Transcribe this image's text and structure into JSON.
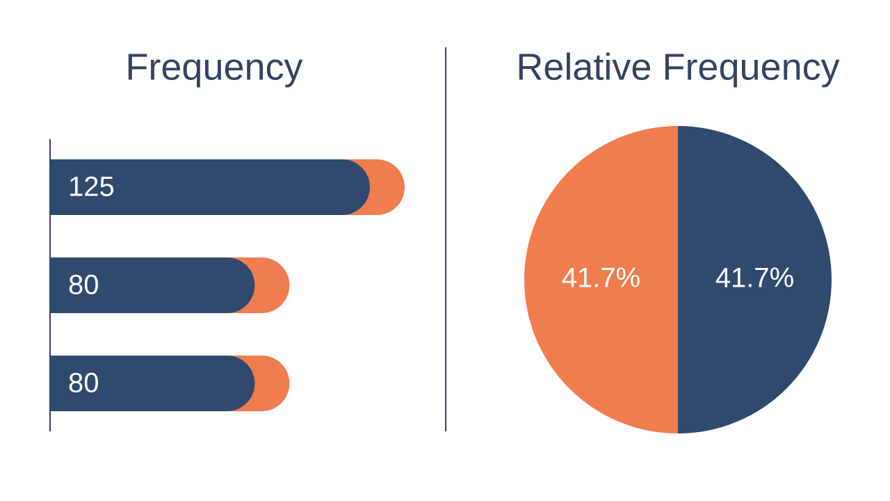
{
  "chart_data": [
    {
      "type": "bar",
      "title": "Frequency",
      "values": [
        125,
        80,
        80
      ],
      "color": "#2f4a6d",
      "accent_color": "#ef7d4f"
    },
    {
      "type": "pie",
      "title": "Relative Frequency",
      "values": [
        41.7,
        41.7
      ],
      "value_labels": [
        "41.7%",
        "41.7%"
      ],
      "colors": [
        "#2f4a6d",
        "#ef7d4f"
      ]
    }
  ]
}
